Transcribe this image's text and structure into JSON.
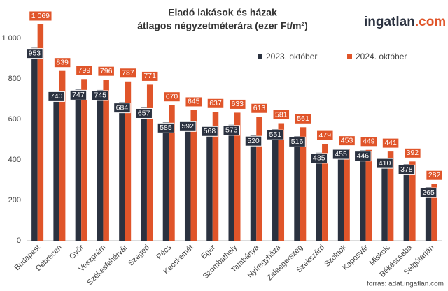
{
  "chart_data": {
    "type": "bar",
    "title": "Eladó  lakások és házak",
    "subtitle": "átlagos négyzetméterára (ezer Ft/m²)",
    "logo": [
      "ingatlan",
      ".com"
    ],
    "source": "forrás: adat.ingatlan.com",
    "categories": [
      "Budapest",
      "Debrecen",
      "Győr",
      "Veszprém",
      "Székesfehérvár",
      "Szeged",
      "Pécs",
      "Kecskemét",
      "Eger",
      "Szombathely",
      "Tatabánya",
      "Nyíregyháza",
      "Zalaegerszeg",
      "Szekszárd",
      "Szolnok",
      "Kaposvár",
      "Miskolc",
      "Békéscsaba",
      "Salgótarján"
    ],
    "series": [
      {
        "name": "2023. október",
        "color": "#2b3240",
        "values": [
          953,
          740,
          747,
          745,
          684,
          657,
          585,
          592,
          568,
          573,
          520,
          551,
          516,
          435,
          455,
          446,
          410,
          378,
          265
        ]
      },
      {
        "name": "2024. október",
        "color": "#e0552a",
        "values": [
          1069,
          839,
          799,
          796,
          787,
          771,
          670,
          645,
          637,
          633,
          613,
          581,
          561,
          479,
          453,
          449,
          441,
          392,
          282
        ],
        "value_labels": [
          "1 069",
          "839",
          "799",
          "796",
          "787",
          "771",
          "670",
          "645",
          "637",
          "633",
          "613",
          "581",
          "561",
          "479",
          "453",
          "449",
          "441",
          "392",
          "282"
        ]
      }
    ],
    "ylim": [
      0,
      1100
    ],
    "yticks": [
      0,
      200,
      400,
      600,
      800,
      {
        "value": 1000,
        "label": "1 000"
      }
    ],
    "grid": false,
    "legend": "top-right"
  }
}
